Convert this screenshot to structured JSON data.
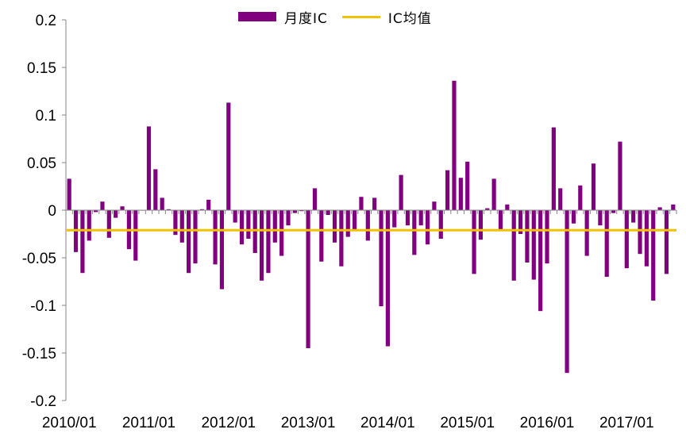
{
  "chart_data": {
    "type": "bar",
    "title": "",
    "xlabel": "",
    "ylabel": "",
    "ylim": [
      -0.2,
      0.2
    ],
    "y_ticks": [
      "0.2",
      "0.15",
      "0.1",
      "0.05",
      "0",
      "-0.05",
      "-0.1",
      "-0.15",
      "-0.2"
    ],
    "x_tick_labels": [
      "2010/01",
      "2011/01",
      "2012/01",
      "2013/01",
      "2014/01",
      "2015/01",
      "2016/01",
      "2017/01"
    ],
    "legend_position": "top-center",
    "colors": {
      "bar": "#800080",
      "mean_line": "#F2C100"
    },
    "series": [
      {
        "name": "月度IC",
        "type": "bar",
        "values": [
          0.033,
          -0.044,
          -0.066,
          -0.032,
          -0.002,
          0.009,
          -0.029,
          -0.008,
          0.004,
          -0.041,
          -0.053,
          0.0,
          0.088,
          0.043,
          0.013,
          0.001,
          -0.026,
          -0.034,
          -0.066,
          -0.056,
          0.001,
          0.011,
          -0.057,
          -0.083,
          0.113,
          -0.013,
          -0.036,
          -0.03,
          -0.045,
          -0.074,
          -0.066,
          -0.034,
          -0.048,
          -0.016,
          -0.003,
          -0.001,
          -0.145,
          0.023,
          -0.054,
          -0.005,
          -0.034,
          -0.059,
          -0.028,
          -0.021,
          0.014,
          -0.032,
          0.013,
          -0.101,
          -0.143,
          -0.018,
          0.037,
          -0.016,
          -0.047,
          -0.016,
          -0.036,
          0.009,
          -0.03,
          0.042,
          0.136,
          0.034,
          0.051,
          -0.067,
          -0.031,
          0.002,
          0.033,
          -0.02,
          0.006,
          -0.074,
          -0.025,
          -0.055,
          -0.073,
          -0.106,
          -0.056,
          0.087,
          0.023,
          -0.171,
          -0.014,
          0.026,
          -0.048,
          0.049,
          -0.016,
          -0.07,
          -0.003,
          0.072,
          -0.061,
          -0.013,
          -0.046,
          -0.059,
          -0.095,
          0.003,
          -0.067,
          0.006
        ]
      },
      {
        "name": "IC均值",
        "type": "line",
        "value": -0.021
      }
    ]
  }
}
